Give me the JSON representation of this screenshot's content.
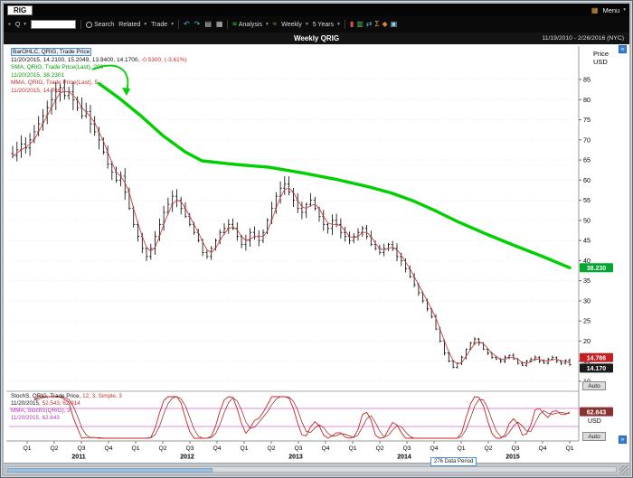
{
  "titlebar": {
    "security": "RIG",
    "menu_label": "Menu",
    "apps_icon": "▦"
  },
  "toolbar": {
    "terminal_icon": "▪",
    "q_label": "Q",
    "caret": "▾",
    "ticker_value": "",
    "search_label": "Search",
    "related_label": "Related",
    "trade_label": "Trade",
    "undo_icon": "↶",
    "redo_icon": "↷",
    "copy_icon": "▤",
    "layout_icon": "▦",
    "analysis_icon": "≈",
    "analysis_label": "Analysis",
    "wave_icon": "≈",
    "weekly_label": "Weekly",
    "range_label": "5 Years",
    "icons": [
      {
        "name": "candlestick-icon",
        "glyph": "▮",
        "color": "#d9534f"
      },
      {
        "name": "bar-chart-icon",
        "glyph": "▥",
        "color": "#5cb85c"
      },
      {
        "name": "compare-arrows-icon",
        "glyph": "⇄",
        "color": "#5bc0de"
      },
      {
        "name": "sum-icon",
        "glyph": "Σ",
        "color": "#f0ad4e"
      },
      {
        "name": "diamond-icon",
        "glyph": "◆",
        "color": "#d9822b"
      },
      {
        "name": "grid-tool-icon",
        "glyph": "▣",
        "color": "#9fd3e8"
      }
    ]
  },
  "header": {
    "title": "Weekly QRIG",
    "date_range": "11/19/2010 - 2/26/2016 (NYC)"
  },
  "legend": {
    "line1": "BarOHLC, QRIG, Trade Price",
    "line2_black": "11/20/2015, 14.2100, 15.2049, 13.9400, 14.1700,",
    "line2_red": "-0.5300, (-3.61%)",
    "line3": "SMA, QRIG, Trade Price(Last), 200",
    "line4": "11/20/2015, 38.2301",
    "line5": "MMA, QRIG, Trade Price(Last), 5",
    "line6": "11/20/2015, 14.7661"
  },
  "stoch_legend": {
    "line1_black": "StochS, QRIG, Trade Price,",
    "line1_red": "12, 3, Simple, 3",
    "line2_black": "11/20/2015,",
    "line2_red": "52.543, 62.914",
    "line3": "MMA, StochS(QRIG), 3",
    "line4": "11/20/2015, 62.643"
  },
  "axis": {
    "title_line1": "Price",
    "title_line2": "USD"
  },
  "badges": {
    "sma": "38.230",
    "mma": "14.766",
    "close": "14.170",
    "stoch": "62.643"
  },
  "buttons": {
    "auto": "Auto",
    "usd": "USD",
    "collapse_top": "«",
    "collapse_bottom": "»"
  },
  "xaxis": {
    "quarters": [
      "Q1",
      "Q2",
      "Q3",
      "Q4",
      "Q1",
      "Q2",
      "Q3",
      "Q4",
      "Q1",
      "Q2",
      "Q3",
      "Q4",
      "Q1",
      "Q2",
      "Q3",
      "Q4",
      "Q1",
      "Q2",
      "Q3",
      "Q4",
      "Q1"
    ],
    "years": [
      "2011",
      "2012",
      "2013",
      "2014",
      "2015"
    ],
    "period_box": "276 Data Period"
  },
  "chart_data": {
    "type": "ohlc",
    "symbol": "QRIG",
    "interval": "Weekly",
    "x_range": [
      "11/19/2010",
      "2/26/2016"
    ],
    "ylim": [
      10,
      93
    ],
    "yticks": [
      85,
      80,
      75,
      70,
      65,
      60,
      55,
      50,
      45,
      40,
      35,
      30,
      25,
      20,
      15,
      10
    ],
    "closes": [
      66,
      67.5,
      69,
      68,
      70,
      72,
      74,
      76,
      78,
      80,
      82,
      83,
      81,
      82,
      80,
      78,
      76,
      77,
      74,
      72,
      70,
      67,
      64,
      62,
      60,
      61,
      57,
      53,
      49,
      46,
      43,
      41,
      43,
      46,
      49,
      52,
      54,
      56,
      55,
      53,
      51,
      49,
      47,
      45,
      42,
      41,
      43,
      45,
      47,
      48,
      49,
      48,
      46,
      44,
      45,
      47,
      46,
      45,
      47,
      50,
      53,
      56,
      58,
      59,
      57,
      55,
      53,
      52,
      54,
      55,
      53,
      51,
      49,
      48,
      50,
      49,
      47,
      46,
      45,
      46,
      47,
      48,
      46,
      44,
      43,
      42,
      43,
      44,
      43,
      41,
      40,
      38,
      36,
      34,
      32,
      30,
      28,
      26,
      23,
      20,
      17,
      15,
      13.5,
      14.5,
      16,
      18,
      19.5,
      20.5,
      19.5,
      18,
      17,
      16,
      15.5,
      15,
      16,
      16.5,
      15.5,
      14.5,
      14,
      15,
      15.5,
      16,
      15,
      14.5,
      15.5,
      16,
      15,
      14.5,
      15.2,
      14.17
    ],
    "last_bar": {
      "date": "11/20/2015",
      "open": 14.21,
      "high": 15.2049,
      "low": 13.94,
      "close": 14.17,
      "change": -0.53,
      "change_pct": "-3.61%"
    },
    "sma200": {
      "period": 200,
      "last": 38.2301,
      "points": [
        [
          0.155,
          84
        ],
        [
          0.19,
          80.5
        ],
        [
          0.23,
          76
        ],
        [
          0.27,
          71
        ],
        [
          0.31,
          67
        ],
        [
          0.34,
          64.8
        ],
        [
          0.4,
          63.9
        ],
        [
          0.46,
          63.2
        ],
        [
          0.52,
          61.8
        ],
        [
          0.58,
          60.2
        ],
        [
          0.64,
          58.3
        ],
        [
          0.68,
          56.8
        ],
        [
          0.72,
          54.8
        ],
        [
          0.76,
          52.3
        ],
        [
          0.8,
          49.6
        ],
        [
          0.85,
          46.6
        ],
        [
          0.9,
          43.8
        ],
        [
          0.95,
          41.1
        ],
        [
          1.0,
          38.23
        ]
      ]
    },
    "mma5": {
      "period": 5,
      "last": 14.7661
    },
    "stoch": {
      "k_period": 12,
      "d_period": 3,
      "type_label": "Simple",
      "mma_period": 3,
      "last_k": 52.543,
      "last_d": 62.914,
      "mma_last": 62.643,
      "bands": [
        30,
        70
      ]
    },
    "colors": {
      "bars": "#000000",
      "sma": "#00cf00",
      "mma": "#c94040",
      "stoch": "#cc2222",
      "stoch_mma": "#8b1d1d",
      "bands": "#d666d6",
      "sma_badge": "#00a62e",
      "mma_badge": "#c32222",
      "close_badge": "#1a1a1a",
      "stoch_badge": "#8a3232"
    }
  }
}
